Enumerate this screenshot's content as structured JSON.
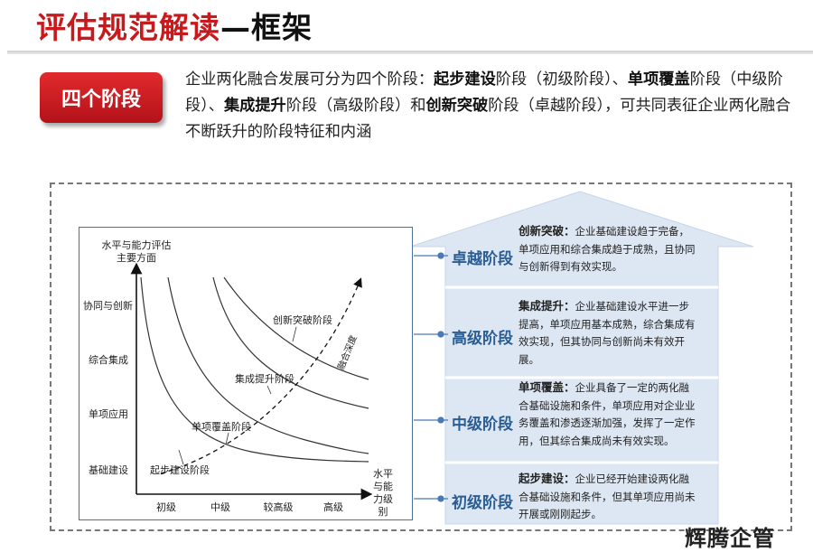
{
  "header": {
    "title": "评估规范解读",
    "subtitle": "—框架"
  },
  "badge": {
    "label": "四个阶段"
  },
  "intro": {
    "t1": "企业两化融合发展可分为四个阶段：",
    "k1": "起步建设",
    "t2": "阶段（初级阶段）、",
    "k2": "单项覆盖",
    "t3": "阶段（中级阶段）、",
    "k3": "集成提升",
    "t4": "阶段（高级阶段）和",
    "k4": "创新突破",
    "t5": "阶段（卓越阶段），可共同表征企业两化融合不断跃升的阶段特征和内涵"
  },
  "chart": {
    "y_axis_title_line1": "水平与能力评估",
    "y_axis_title_line2": "主要方面",
    "y_levels": [
      "协同与创新",
      "综合集成",
      "单项应用",
      "基础建设"
    ],
    "x_levels": [
      "初级",
      "中级",
      "较高级",
      "高级"
    ],
    "x_axis_title_lines": [
      "水平",
      "与能",
      "力级",
      "别"
    ],
    "curve_labels": [
      "起步建设阶段",
      "单项覆盖阶段",
      "集成提升阶段",
      "创新突破阶段"
    ],
    "trend_label": "融合深度"
  },
  "stages": [
    {
      "label": "卓越阶段",
      "heading": "创新突破：",
      "desc": "企业基础建设趋于完备，单项应用和综合集成趋于成熟，且协同与创新得到有效实现。"
    },
    {
      "label": "高级阶段",
      "heading": "集成提升：",
      "desc": "企业基础建设水平进一步提高，单项应用基本成熟，综合集成有效实现，但其协同与创新尚未有效开展。"
    },
    {
      "label": "中级阶段",
      "heading": "单项覆盖：",
      "desc": "企业具备了一定的两化融合基础设施和条件，单项应用对企业业务覆盖和渗透逐渐加强，发挥了一定作用，但其综合集成尚未有效实现。"
    },
    {
      "label": "初级阶段",
      "heading": "起步建设：",
      "desc": "企业已经开始建设两化融合基础设施和条件，但其单项应用尚未开展或刚刚起步。"
    }
  ],
  "colors": {
    "title_red": "#c8191d",
    "badge_red": "#c8191d",
    "stage_blue": "#2a5d93",
    "arrow_fill": "#dde7f3",
    "connector": "#4a7ab5"
  },
  "watermark": "辉腾企管"
}
